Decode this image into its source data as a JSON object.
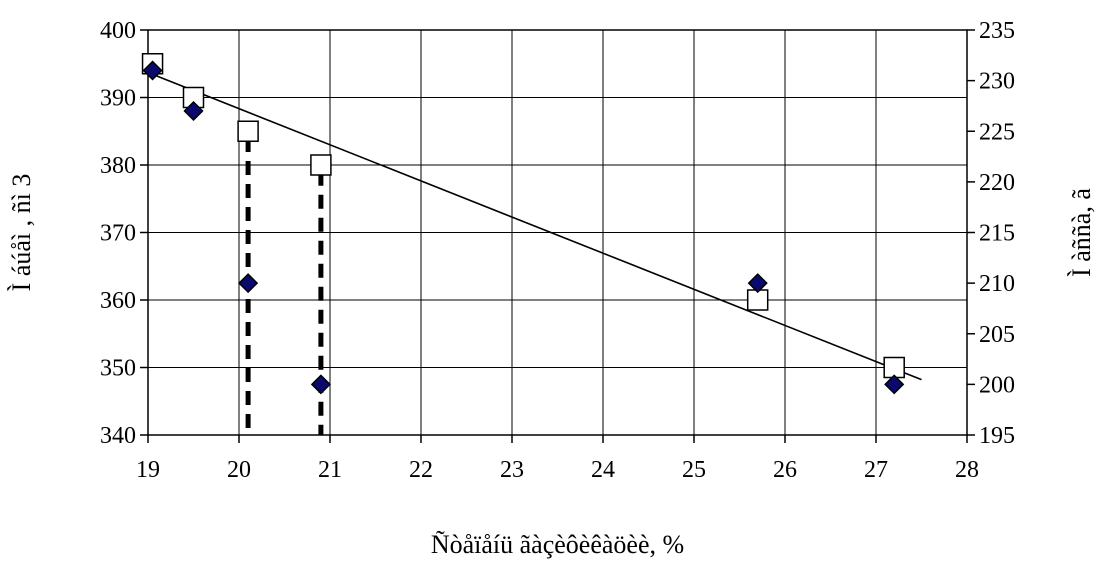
{
  "chart_data": {
    "type": "scatter",
    "title": "",
    "xlabel": "Ñòåïåíü ãàçèôèêàöèè, %",
    "ylabel_left": "Ì áúåì , ñì 3",
    "ylabel_right": "Ì àññà, ã",
    "xlim": [
      19,
      28
    ],
    "ylim_left": [
      340,
      400
    ],
    "ylim_right": [
      195,
      235
    ],
    "x_ticks": [
      19,
      20,
      21,
      22,
      23,
      24,
      25,
      26,
      27,
      28
    ],
    "x_tick_labels": [
      "19",
      "20",
      "21",
      "22",
      "23",
      "24",
      "25",
      "26",
      "27",
      "28"
    ],
    "y_left_ticks": [
      340,
      350,
      360,
      370,
      380,
      390,
      400
    ],
    "y_left_tick_labels": [
      "340",
      "350",
      "360",
      "370",
      "380",
      "390",
      "400"
    ],
    "y_right_ticks": [
      195,
      200,
      205,
      210,
      215,
      220,
      225,
      230,
      235
    ],
    "y_right_tick_labels": [
      "195",
      "200",
      "205",
      "210",
      "215",
      "220",
      "225",
      "230",
      "235"
    ],
    "grid": true,
    "legend": "none",
    "series": [
      {
        "marker": "square-open",
        "axis": "left",
        "x": [
          19.05,
          19.5,
          20.1,
          20.9,
          25.7,
          27.2
        ],
        "y": [
          395,
          390,
          385,
          380,
          360,
          350
        ]
      },
      {
        "marker": "diamond-filled",
        "axis": "right",
        "color": "#0a0a6e",
        "x": [
          19.05,
          19.5,
          20.1,
          20.9,
          25.7,
          27.2
        ],
        "y": [
          231,
          227,
          210,
          200,
          210,
          200
        ]
      }
    ],
    "trendline": {
      "axis": "left",
      "x": [
        19.0,
        27.5
      ],
      "y": [
        393.7,
        348.2
      ]
    },
    "dashed_lines": [
      {
        "x": 20.1,
        "y_from": 384,
        "y_to": 340,
        "axis": "left"
      },
      {
        "x": 20.9,
        "y_from": 379,
        "y_to": 340,
        "axis": "left"
      }
    ]
  }
}
